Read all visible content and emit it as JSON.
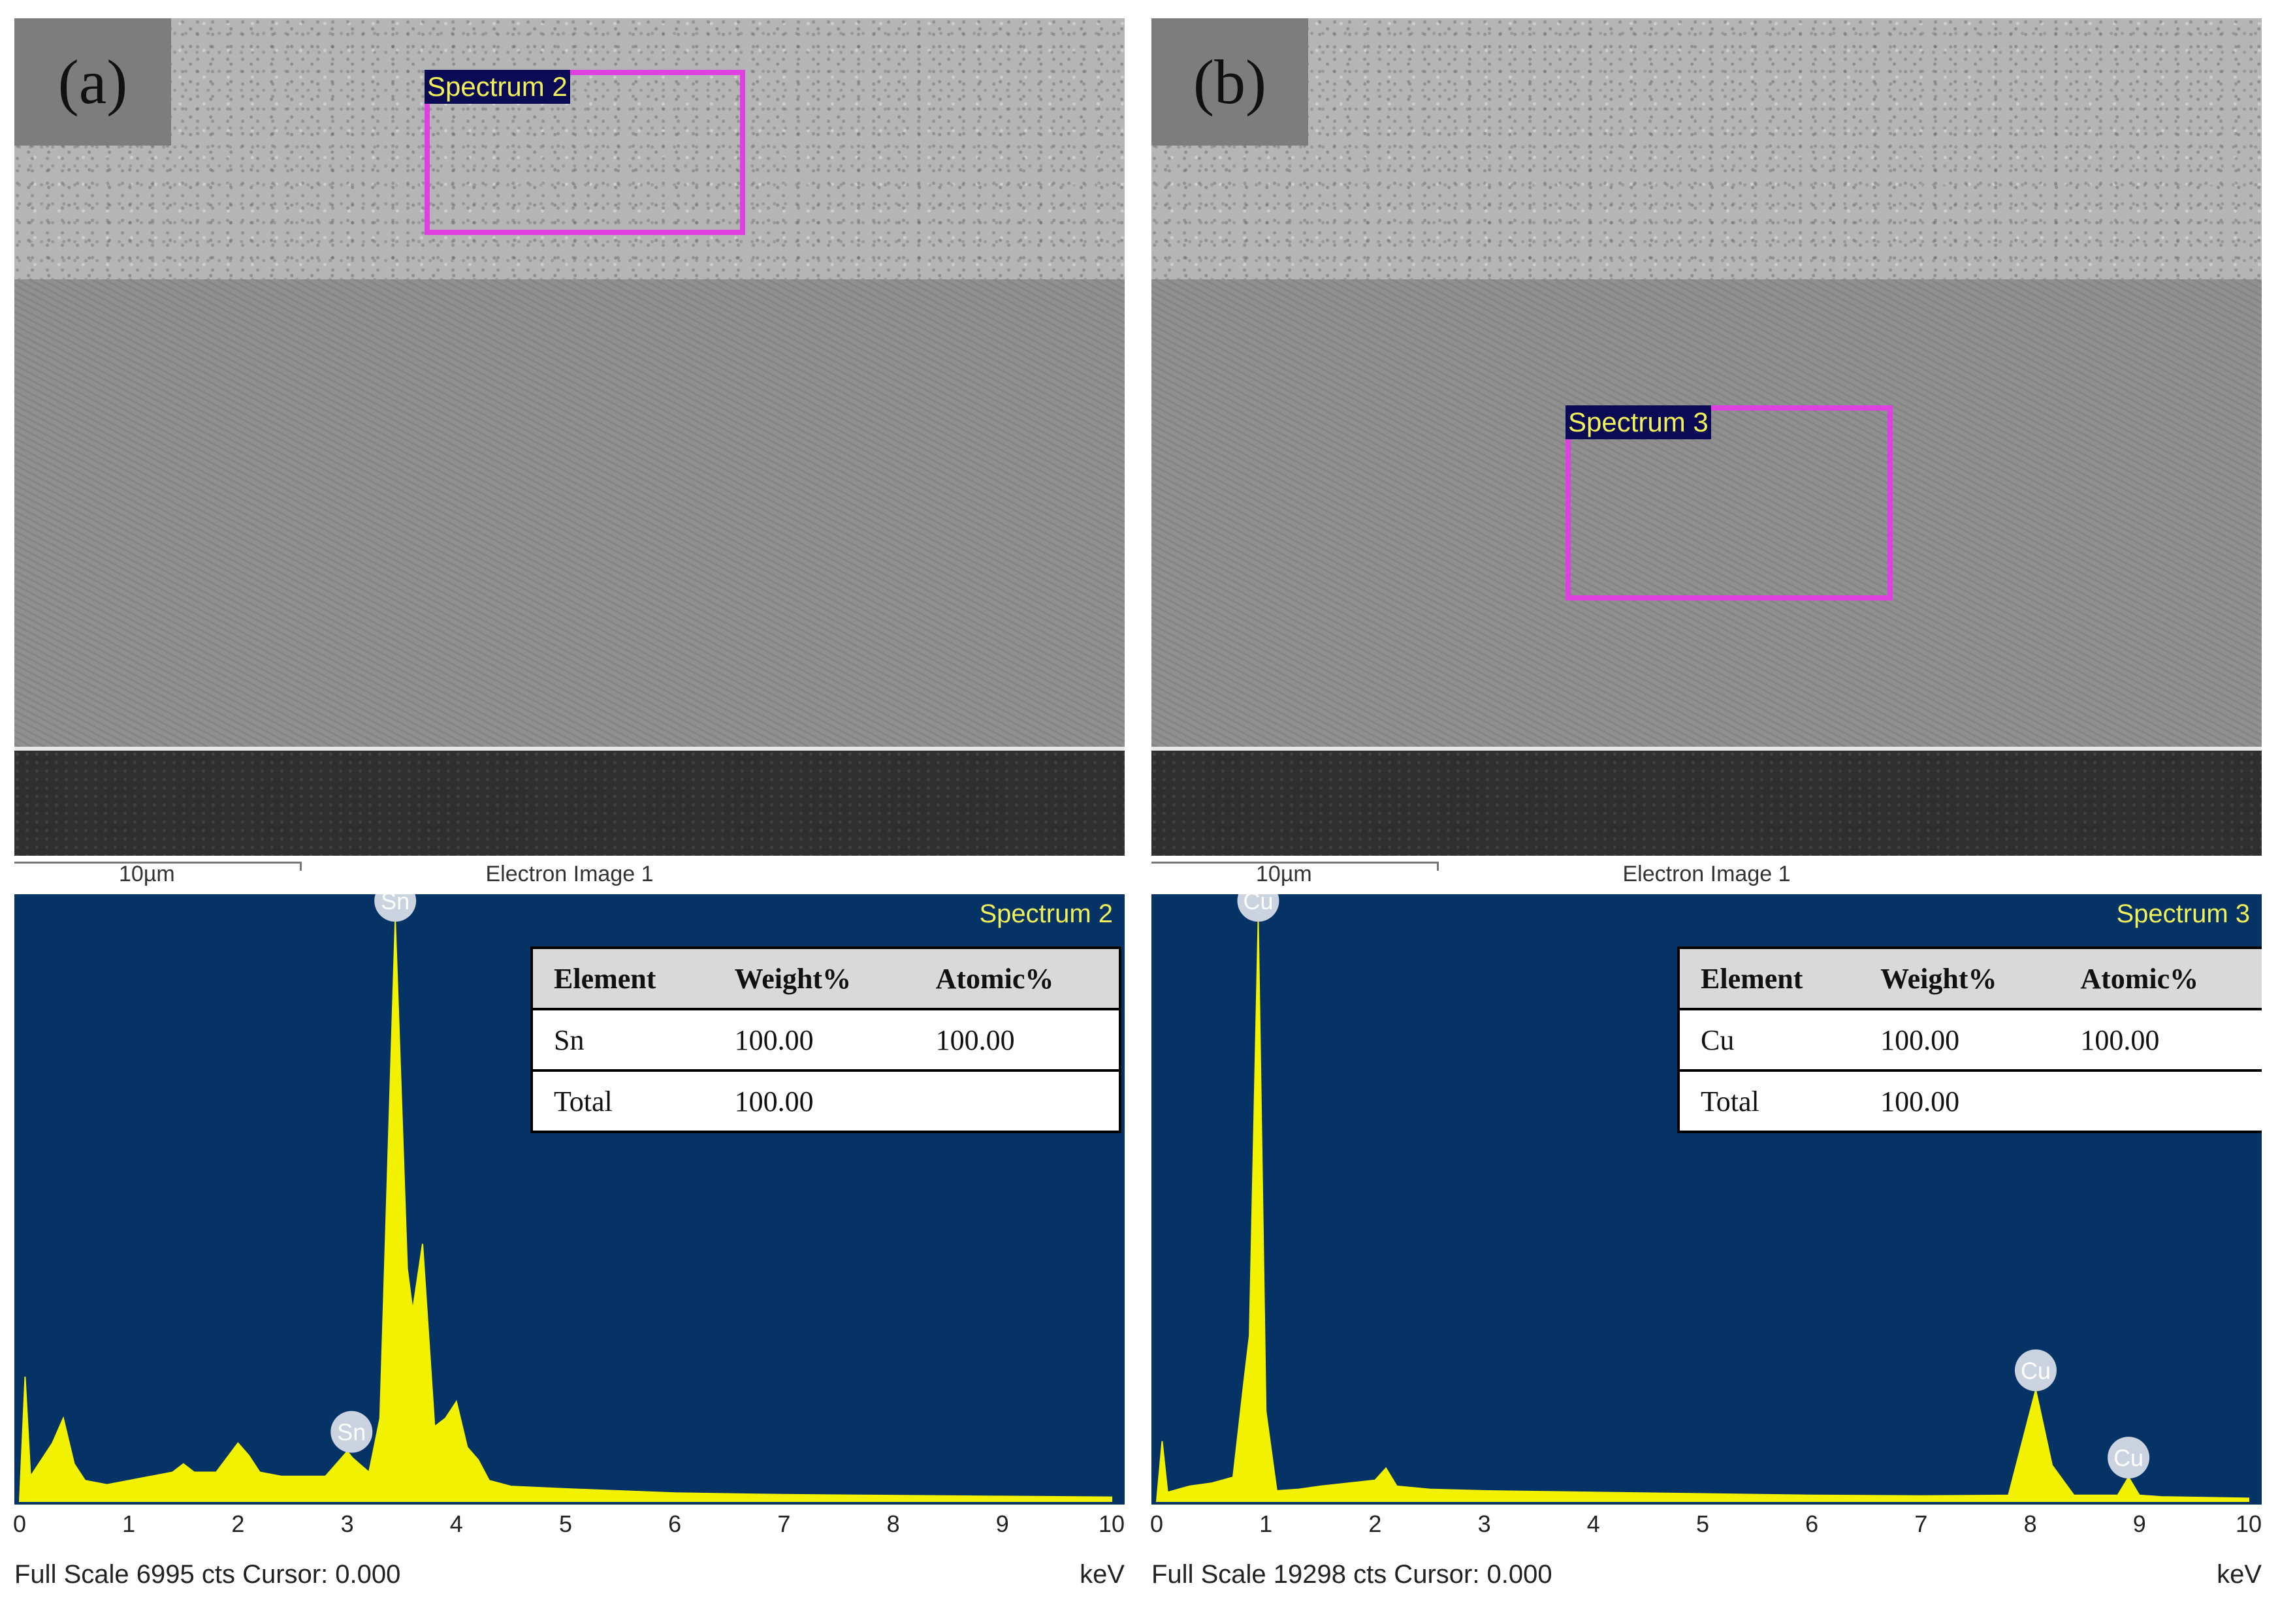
{
  "panels": [
    {
      "tag": "(a)",
      "region_label": "Spectrum 2",
      "scale_text": "10µm",
      "image_title": "Electron Image 1",
      "spectrum_name": "Spectrum 2",
      "table": {
        "headers": [
          "Element",
          "Weight%",
          "Atomic%"
        ],
        "rows": [
          [
            "Sn",
            "100.00",
            "100.00"
          ],
          [
            "Total",
            "100.00",
            ""
          ]
        ]
      },
      "footer_left": "Full Scale 6995 cts Cursor: 0.000",
      "footer_right": "keV",
      "peak_labels": [
        "Sn",
        "Sn"
      ]
    },
    {
      "tag": "(b)",
      "region_label": "Spectrum 3",
      "scale_text": "10µm",
      "image_title": "Electron Image 1",
      "spectrum_name": "Spectrum 3",
      "table": {
        "headers": [
          "Element",
          "Weight%",
          "Atomic%"
        ],
        "rows": [
          [
            "Cu",
            "100.00",
            "100.00"
          ],
          [
            "Total",
            "100.00",
            ""
          ]
        ]
      },
      "footer_left": "Full Scale 19298 cts Cursor: 0.000",
      "footer_right": "keV",
      "peak_labels": [
        "Cu",
        "Cu",
        "Cu"
      ]
    }
  ],
  "chart_data": [
    {
      "type": "line",
      "title": "Spectrum 2",
      "xlabel": "keV",
      "xlim": [
        0,
        10
      ],
      "ylim": [
        0,
        6995
      ],
      "x_ticks": [
        "0",
        "1",
        "2",
        "3",
        "4",
        "5",
        "6",
        "7",
        "8",
        "9",
        "10"
      ],
      "x": [
        0.0,
        0.05,
        0.1,
        0.2,
        0.3,
        0.4,
        0.5,
        0.6,
        0.8,
        1.0,
        1.2,
        1.4,
        1.5,
        1.6,
        1.8,
        2.0,
        2.1,
        2.2,
        2.4,
        2.6,
        2.8,
        3.0,
        3.05,
        3.2,
        3.3,
        3.44,
        3.55,
        3.6,
        3.69,
        3.8,
        3.9,
        4.0,
        4.1,
        4.2,
        4.3,
        4.5,
        5.0,
        6.0,
        7.0,
        8.0,
        9.0,
        10.0
      ],
      "y": [
        0,
        1500,
        300,
        500,
        700,
        1000,
        450,
        250,
        200,
        250,
        300,
        350,
        450,
        350,
        350,
        700,
        550,
        350,
        300,
        300,
        300,
        600,
        520,
        350,
        1000,
        6995,
        2800,
        2300,
        3100,
        900,
        1000,
        1200,
        650,
        500,
        250,
        180,
        150,
        100,
        80,
        70,
        60,
        50
      ],
      "peaks": [
        {
          "label": "Sn",
          "x": 3.44,
          "y": 6995
        },
        {
          "label": "Sn",
          "x": 3.04,
          "y": 600
        }
      ]
    },
    {
      "type": "line",
      "title": "Spectrum 3",
      "xlabel": "keV",
      "xlim": [
        0,
        10
      ],
      "ylim": [
        0,
        19298
      ],
      "x_ticks": [
        "0",
        "1",
        "2",
        "3",
        "4",
        "5",
        "6",
        "7",
        "8",
        "9",
        "10"
      ],
      "x": [
        0.0,
        0.05,
        0.1,
        0.3,
        0.5,
        0.7,
        0.8,
        0.85,
        0.93,
        1.0,
        1.1,
        1.3,
        1.5,
        2.0,
        2.1,
        2.2,
        2.5,
        3.0,
        4.0,
        5.0,
        6.0,
        7.0,
        7.8,
        8.0,
        8.05,
        8.2,
        8.4,
        8.8,
        8.9,
        9.0,
        9.2,
        10.0
      ],
      "y": [
        0,
        2000,
        300,
        500,
        600,
        800,
        4000,
        5500,
        19298,
        3000,
        350,
        400,
        500,
        700,
        1100,
        500,
        400,
        350,
        300,
        250,
        200,
        180,
        200,
        3000,
        3700,
        1200,
        200,
        200,
        800,
        200,
        150,
        100
      ],
      "peaks": [
        {
          "label": "Cu",
          "x": 0.93,
          "y": 19298
        },
        {
          "label": "Cu",
          "x": 8.05,
          "y": 3700
        },
        {
          "label": "Cu",
          "x": 8.9,
          "y": 800
        }
      ]
    }
  ]
}
